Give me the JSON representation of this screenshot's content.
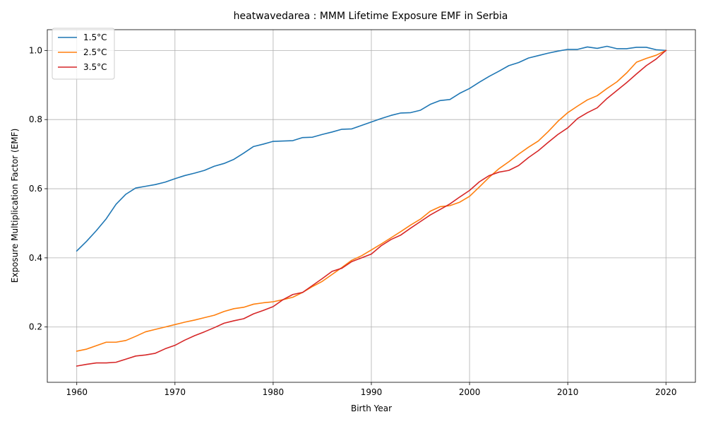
{
  "chart_data": {
    "type": "line",
    "title": "heatwavedarea : MMM Lifetime Exposure EMF in Serbia",
    "xlabel": "Birth Year",
    "ylabel": "Exposure Multiplication Factor (EMF)",
    "xlim": [
      1957,
      2023
    ],
    "ylim": [
      0.04,
      1.06
    ],
    "xticks": [
      1960,
      1970,
      1980,
      1990,
      2000,
      2010,
      2020
    ],
    "yticks": [
      0.2,
      0.4,
      0.6,
      0.8,
      1.0
    ],
    "xtick_labels": [
      "1960",
      "1970",
      "1980",
      "1990",
      "2000",
      "2010",
      "2020"
    ],
    "ytick_labels": [
      "0.2",
      "0.4",
      "0.6",
      "0.8",
      "1.0"
    ],
    "grid": true,
    "legend_position": "top-left",
    "x": [
      1960,
      1961,
      1962,
      1963,
      1964,
      1965,
      1966,
      1967,
      1968,
      1969,
      1970,
      1971,
      1972,
      1973,
      1974,
      1975,
      1976,
      1977,
      1978,
      1979,
      1980,
      1981,
      1982,
      1983,
      1984,
      1985,
      1986,
      1987,
      1988,
      1989,
      1990,
      1991,
      1992,
      1993,
      1994,
      1995,
      1996,
      1997,
      1998,
      1999,
      2000,
      2001,
      2002,
      2003,
      2004,
      2005,
      2006,
      2007,
      2008,
      2009,
      2010,
      2011,
      2012,
      2013,
      2014,
      2015,
      2016,
      2017,
      2018,
      2019,
      2020
    ],
    "series": [
      {
        "name": "1.5°C",
        "color": "#1f77b4",
        "values": [
          0.42,
          0.448,
          0.479,
          0.513,
          0.555,
          0.584,
          0.602,
          0.607,
          0.612,
          0.619,
          0.629,
          0.638,
          0.645,
          0.653,
          0.665,
          0.673,
          0.685,
          0.703,
          0.722,
          0.729,
          0.737,
          0.738,
          0.739,
          0.748,
          0.749,
          0.757,
          0.764,
          0.772,
          0.773,
          0.783,
          0.793,
          0.803,
          0.812,
          0.819,
          0.82,
          0.827,
          0.844,
          0.855,
          0.858,
          0.876,
          0.89,
          0.908,
          0.925,
          0.94,
          0.956,
          0.965,
          0.978,
          0.985,
          0.992,
          0.998,
          1.003,
          1.003,
          1.01,
          1.006,
          1.012,
          1.005,
          1.005,
          1.009,
          1.009,
          1.002,
          1.0
        ]
      },
      {
        "name": "2.5°C",
        "color": "#ff7f0e",
        "values": [
          0.13,
          0.136,
          0.146,
          0.156,
          0.156,
          0.161,
          0.173,
          0.186,
          0.193,
          0.2,
          0.207,
          0.214,
          0.22,
          0.227,
          0.234,
          0.245,
          0.253,
          0.257,
          0.266,
          0.27,
          0.273,
          0.279,
          0.286,
          0.3,
          0.317,
          0.332,
          0.352,
          0.372,
          0.393,
          0.406,
          0.423,
          0.44,
          0.458,
          0.476,
          0.495,
          0.512,
          0.535,
          0.548,
          0.551,
          0.561,
          0.578,
          0.605,
          0.633,
          0.658,
          0.678,
          0.7,
          0.72,
          0.738,
          0.765,
          0.795,
          0.82,
          0.839,
          0.857,
          0.869,
          0.89,
          0.909,
          0.935,
          0.966,
          0.977,
          0.986,
          1.0
        ]
      },
      {
        "name": "3.5°C",
        "color": "#d62728",
        "values": [
          0.087,
          0.092,
          0.096,
          0.096,
          0.098,
          0.107,
          0.116,
          0.119,
          0.124,
          0.137,
          0.147,
          0.162,
          0.175,
          0.186,
          0.198,
          0.211,
          0.218,
          0.224,
          0.238,
          0.248,
          0.259,
          0.279,
          0.294,
          0.3,
          0.32,
          0.34,
          0.361,
          0.37,
          0.389,
          0.4,
          0.411,
          0.435,
          0.453,
          0.466,
          0.486,
          0.505,
          0.524,
          0.54,
          0.556,
          0.576,
          0.595,
          0.62,
          0.638,
          0.648,
          0.653,
          0.667,
          0.69,
          0.71,
          0.734,
          0.757,
          0.776,
          0.803,
          0.82,
          0.834,
          0.861,
          0.884,
          0.907,
          0.932,
          0.956,
          0.975,
          1.0
        ]
      }
    ]
  }
}
